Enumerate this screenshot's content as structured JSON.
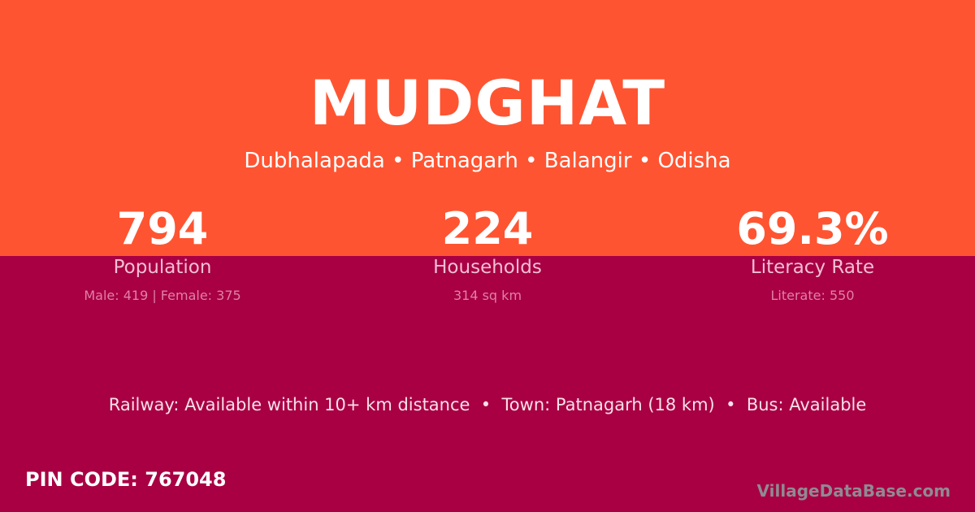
{
  "village": {
    "name": "MUDGHAT",
    "location": "Dubhalapada • Patnagarh • Balangir • Odisha"
  },
  "stats": [
    {
      "value": "794",
      "label": "Population",
      "detail": "Male: 419 | Female: 375"
    },
    {
      "value": "224",
      "label": "Households",
      "detail": "314 sq km"
    },
    {
      "value": "69.3%",
      "label": "Literacy Rate",
      "detail": "Literate: 550"
    }
  ],
  "connectivity": "Railway: Available within 10+ km distance  •  Town: Patnagarh (18 km)  •  Bus: Available",
  "pin_code": "PIN CODE: 767048",
  "brand": "VillageDataBase.com",
  "colors": {
    "top": "#ff5431",
    "bottom": "#a80043"
  }
}
